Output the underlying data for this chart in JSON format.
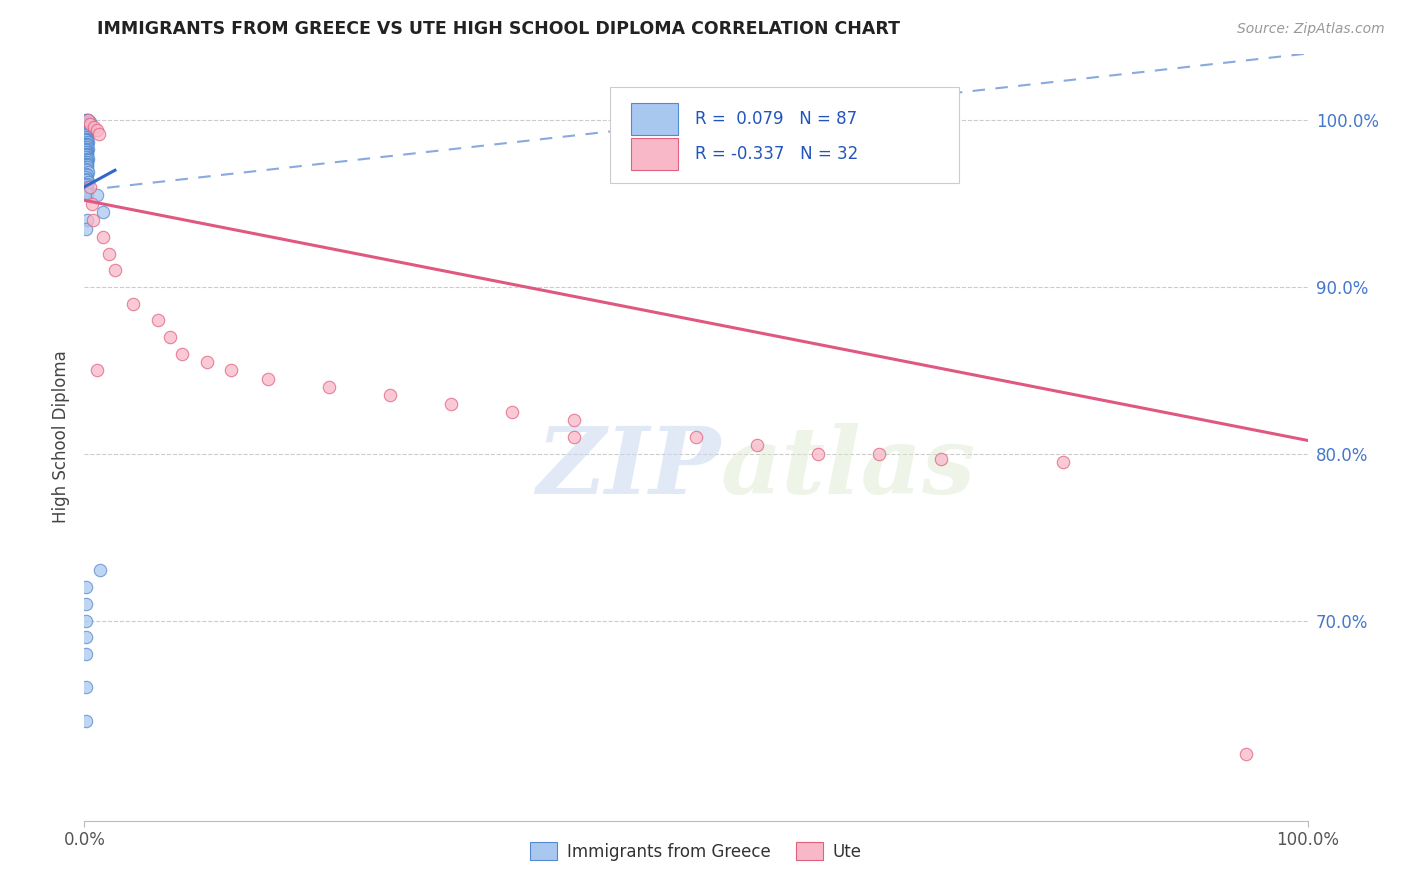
{
  "title": "IMMIGRANTS FROM GREECE VS UTE HIGH SCHOOL DIPLOMA CORRELATION CHART",
  "source": "Source: ZipAtlas.com",
  "ylabel": "High School Diploma",
  "r_blue": 0.079,
  "n_blue": 87,
  "r_pink": -0.337,
  "n_pink": 32,
  "blue_color": "#a8c8f0",
  "blue_edge": "#5588cc",
  "pink_color": "#f8b8c8",
  "pink_edge": "#e06080",
  "trendline_blue_color": "#3366cc",
  "trendline_pink_color": "#e05880",
  "trendline_dashed_color": "#88aadd",
  "watermark_zip": "ZIP",
  "watermark_atlas": "atlas",
  "legend_blue_label": "Immigrants from Greece",
  "legend_pink_label": "Ute",
  "blue_scatter_x": [
    0.001,
    0.002,
    0.003,
    0.004,
    0.005,
    0.001,
    0.002,
    0.003,
    0.001,
    0.002,
    0.001,
    0.002,
    0.003,
    0.001,
    0.002,
    0.001,
    0.003,
    0.002,
    0.001,
    0.002,
    0.001,
    0.002,
    0.001,
    0.002,
    0.001,
    0.002,
    0.001,
    0.003,
    0.002,
    0.001,
    0.002,
    0.001,
    0.002,
    0.001,
    0.002,
    0.001,
    0.003,
    0.002,
    0.001,
    0.002,
    0.001,
    0.002,
    0.001,
    0.002,
    0.001,
    0.002,
    0.001,
    0.002,
    0.003,
    0.001,
    0.002,
    0.001,
    0.002,
    0.001,
    0.002,
    0.001,
    0.002,
    0.001,
    0.002,
    0.001,
    0.002,
    0.003,
    0.001,
    0.002,
    0.001,
    0.002,
    0.001,
    0.003,
    0.002,
    0.001,
    0.002,
    0.001,
    0.002,
    0.001,
    0.002,
    0.01,
    0.015,
    0.002,
    0.001,
    0.013,
    0.001,
    0.001,
    0.001,
    0.001,
    0.001,
    0.001,
    0.001
  ],
  "blue_scatter_y": [
    1.0,
    1.0,
    1.0,
    0.999,
    0.999,
    0.998,
    0.998,
    0.997,
    0.997,
    0.996,
    0.996,
    0.995,
    0.995,
    0.994,
    0.994,
    0.993,
    0.993,
    0.992,
    0.992,
    0.991,
    0.991,
    0.99,
    0.99,
    0.989,
    0.989,
    0.988,
    0.988,
    0.987,
    0.987,
    0.986,
    0.986,
    0.985,
    0.985,
    0.984,
    0.984,
    0.983,
    0.983,
    0.982,
    0.982,
    0.981,
    0.981,
    0.98,
    0.98,
    0.979,
    0.979,
    0.978,
    0.978,
    0.977,
    0.977,
    0.976,
    0.976,
    0.975,
    0.975,
    0.974,
    0.974,
    0.973,
    0.973,
    0.972,
    0.972,
    0.971,
    0.97,
    0.969,
    0.968,
    0.967,
    0.966,
    0.965,
    0.964,
    0.963,
    0.962,
    0.961,
    0.96,
    0.959,
    0.958,
    0.957,
    0.956,
    0.955,
    0.945,
    0.94,
    0.935,
    0.73,
    0.72,
    0.71,
    0.7,
    0.69,
    0.68,
    0.66,
    0.64
  ],
  "pink_scatter_x": [
    0.003,
    0.005,
    0.008,
    0.01,
    0.012,
    0.005,
    0.006,
    0.007,
    0.015,
    0.02,
    0.025,
    0.04,
    0.06,
    0.07,
    0.08,
    0.1,
    0.12,
    0.15,
    0.2,
    0.25,
    0.3,
    0.35,
    0.4,
    0.5,
    0.4,
    0.55,
    0.6,
    0.65,
    0.7,
    0.8,
    0.01,
    0.95
  ],
  "pink_scatter_y": [
    1.0,
    0.998,
    0.996,
    0.994,
    0.992,
    0.96,
    0.95,
    0.94,
    0.93,
    0.92,
    0.91,
    0.89,
    0.88,
    0.87,
    0.86,
    0.855,
    0.85,
    0.845,
    0.84,
    0.835,
    0.83,
    0.825,
    0.82,
    0.81,
    0.81,
    0.805,
    0.8,
    0.8,
    0.797,
    0.795,
    0.85,
    0.62
  ],
  "xlim": [
    0.0,
    1.0
  ],
  "ylim": [
    0.58,
    1.04
  ],
  "ytick_vals": [
    1.0,
    0.9,
    0.8,
    0.7
  ],
  "ytick_labels": [
    "100.0%",
    "90.0%",
    "80.0%",
    "70.0%"
  ],
  "xtick_vals": [
    0.0,
    1.0
  ],
  "xtick_labels": [
    "0.0%",
    "100.0%"
  ],
  "blue_trend_x": [
    0.0,
    0.025
  ],
  "blue_trend_y": [
    0.96,
    0.97
  ],
  "pink_trend_x": [
    0.0,
    1.0
  ],
  "pink_trend_y": [
    0.952,
    0.808
  ],
  "dashed_trend_x": [
    0.0,
    1.0
  ],
  "dashed_trend_y": [
    0.958,
    1.04
  ]
}
